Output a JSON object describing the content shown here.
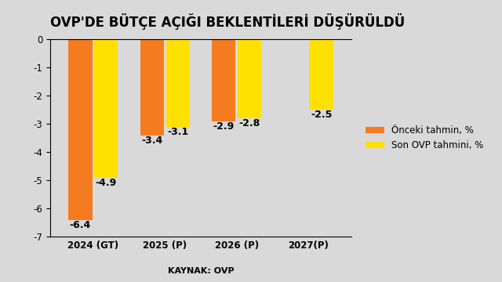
{
  "chart_data": {
    "type": "bar",
    "title": "OVP'DE BÜTÇE AÇIĞI BEKLENTİLERİ DÜŞÜRÜLDÜ",
    "source": "KAYNAK: OVP",
    "categories": [
      "2024 (GT)",
      "2025 (P)",
      "2026 (P)",
      "2027(P)"
    ],
    "series": [
      {
        "name": "Önceki tahmin, %",
        "color": "#f47b20",
        "values": [
          -6.4,
          -3.4,
          -2.9,
          null
        ]
      },
      {
        "name": "Son OVP tahmini, %",
        "color": "#ffe000",
        "values": [
          -4.9,
          -3.1,
          -2.8,
          -2.5
        ]
      }
    ],
    "ylim": [
      -7,
      0
    ],
    "yticks": [
      -7,
      -6,
      -5,
      -4,
      -3,
      -2,
      -1,
      0
    ],
    "grid": false,
    "legend": "right",
    "data_labels": true
  }
}
